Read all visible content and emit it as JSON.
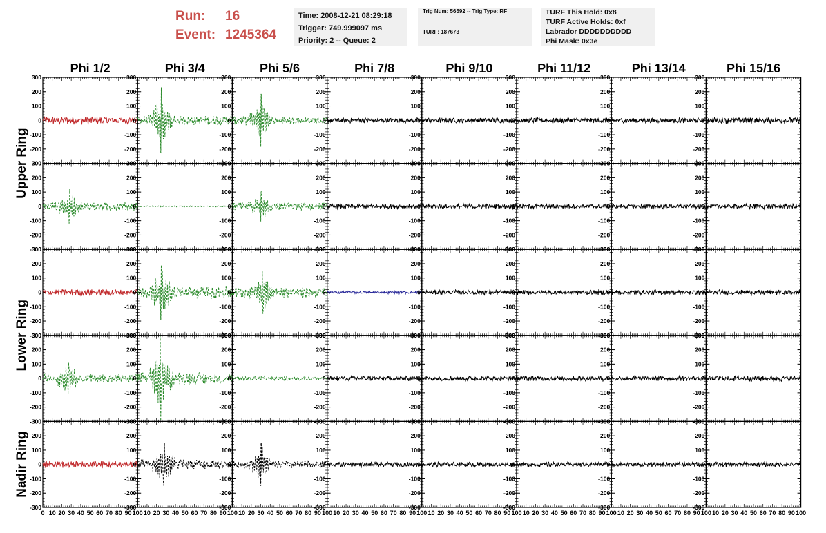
{
  "header": {
    "run_label": "Run:",
    "run_value": "16",
    "event_label": "Event:",
    "event_value": "1245364",
    "info_time": [
      "Time: 2008-12-21 08:29:18",
      "Trigger: 749.999097 ms",
      "Priority: 2 -- Queue: 2"
    ],
    "info_trig": [
      "Trig Num: 56592 -- Trig Type: RF",
      "",
      "TURF: 187673"
    ],
    "info_turf": [
      "TURF This Hold: 0x8",
      "TURF Active Holds: 0xf",
      "Labrador DDDDDDDDDD",
      "Phi Mask: 0x3e"
    ],
    "accent_color": "#c9504c"
  },
  "chart_data": {
    "type": "line",
    "columns": [
      "Phi 1/2",
      "Phi 3/4",
      "Phi 5/6",
      "Phi 7/8",
      "Phi 9/10",
      "Phi 11/12",
      "Phi 13/14",
      "Phi 15/16"
    ],
    "ring_labels": [
      "Upper Ring",
      "Lower Ring",
      "Nadir Ring"
    ],
    "ring_rows": [
      [
        0,
        1
      ],
      [
        2,
        3
      ],
      [
        4
      ]
    ],
    "rows": 5,
    "xlim": [
      0,
      100
    ],
    "ylim": [
      -300,
      300
    ],
    "x_tick_labels": [
      "0",
      "10",
      "20",
      "30",
      "40",
      "50",
      "60",
      "70",
      "80",
      "90",
      "100"
    ],
    "y_tick_labels": [
      "300",
      "200",
      "100",
      "0",
      "-100",
      "-200",
      "-300"
    ],
    "colors": {
      "red": "#c0282a",
      "green": "#2a8a2a",
      "blue": "#2a2a9a",
      "black": "#000000"
    },
    "panels": [
      [
        {
          "color": "red",
          "style": "solid",
          "amp": 22,
          "burst": 0,
          "spike": 0,
          "spike_at": 0
        },
        {
          "color": "green",
          "style": "dashed",
          "amp": 25,
          "burst": 150,
          "spike": 230,
          "spike_at": 25
        },
        {
          "color": "green",
          "style": "dashed",
          "amp": 22,
          "burst": 130,
          "spike": 185,
          "spike_at": 30
        },
        {
          "color": "black",
          "style": "solid",
          "amp": 14,
          "burst": 0,
          "spike": 0,
          "spike_at": 0
        },
        {
          "color": "black",
          "style": "solid",
          "amp": 14,
          "burst": 0,
          "spike": 0,
          "spike_at": 0
        },
        {
          "color": "black",
          "style": "solid",
          "amp": 14,
          "burst": 0,
          "spike": 0,
          "spike_at": 0
        },
        {
          "color": "black",
          "style": "solid",
          "amp": 14,
          "burst": 0,
          "spike": 0,
          "spike_at": 0
        },
        {
          "color": "black",
          "style": "solid",
          "amp": 17,
          "burst": 0,
          "spike": 0,
          "spike_at": 0
        }
      ],
      [
        {
          "color": "green",
          "style": "dashed",
          "amp": 25,
          "burst": 80,
          "spike": 120,
          "spike_at": 28
        },
        {
          "color": "green",
          "style": "dashed",
          "amp": 3,
          "burst": 0,
          "spike": 0,
          "spike_at": 0
        },
        {
          "color": "green",
          "style": "dashed",
          "amp": 22,
          "burst": 70,
          "spike": 105,
          "spike_at": 30
        },
        {
          "color": "black",
          "style": "solid",
          "amp": 14,
          "burst": 0,
          "spike": 0,
          "spike_at": 0
        },
        {
          "color": "black",
          "style": "solid",
          "amp": 15,
          "burst": 0,
          "spike": 0,
          "spike_at": 0
        },
        {
          "color": "black",
          "style": "solid",
          "amp": 14,
          "burst": 0,
          "spike": 0,
          "spike_at": 0
        },
        {
          "color": "black",
          "style": "solid",
          "amp": 14,
          "burst": 0,
          "spike": 0,
          "spike_at": 0
        },
        {
          "color": "black",
          "style": "solid",
          "amp": 15,
          "burst": 0,
          "spike": 0,
          "spike_at": 0
        }
      ],
      [
        {
          "color": "red",
          "style": "solid",
          "amp": 18,
          "burst": 0,
          "spike": 0,
          "spike_at": 0
        },
        {
          "color": "green",
          "style": "dashed",
          "amp": 35,
          "burst": 140,
          "spike": 190,
          "spike_at": 25
        },
        {
          "color": "green",
          "style": "dashed",
          "amp": 30,
          "burst": 120,
          "spike": 150,
          "spike_at": 32
        },
        {
          "color": "blue",
          "style": "solid",
          "amp": 8,
          "burst": 0,
          "spike": 0,
          "spike_at": 0
        },
        {
          "color": "black",
          "style": "solid",
          "amp": 14,
          "burst": 0,
          "spike": 0,
          "spike_at": 0
        },
        {
          "color": "black",
          "style": "solid",
          "amp": 14,
          "burst": 0,
          "spike": 0,
          "spike_at": 0
        },
        {
          "color": "black",
          "style": "solid",
          "amp": 14,
          "burst": 0,
          "spike": 0,
          "spike_at": 0
        },
        {
          "color": "black",
          "style": "solid",
          "amp": 14,
          "burst": 0,
          "spike": 0,
          "spike_at": 0
        }
      ],
      [
        {
          "color": "green",
          "style": "dashed",
          "amp": 25,
          "burst": 90,
          "spike": 110,
          "spike_at": 27
        },
        {
          "color": "green",
          "style": "dashed",
          "amp": 35,
          "burst": 180,
          "spike": 295,
          "spike_at": 24
        },
        {
          "color": "green",
          "style": "dashed",
          "amp": 12,
          "burst": 0,
          "spike": 0,
          "spike_at": 0
        },
        {
          "color": "black",
          "style": "solid",
          "amp": 14,
          "burst": 0,
          "spike": 0,
          "spike_at": 0
        },
        {
          "color": "black",
          "style": "solid",
          "amp": 14,
          "burst": 0,
          "spike": 0,
          "spike_at": 0
        },
        {
          "color": "black",
          "style": "solid",
          "amp": 14,
          "burst": 0,
          "spike": 0,
          "spike_at": 0
        },
        {
          "color": "black",
          "style": "solid",
          "amp": 14,
          "burst": 0,
          "spike": 0,
          "spike_at": 0
        },
        {
          "color": "black",
          "style": "solid",
          "amp": 16,
          "burst": 0,
          "spike": 0,
          "spike_at": 0
        }
      ],
      [
        {
          "color": "red",
          "style": "solid",
          "amp": 20,
          "burst": 0,
          "spike": 0,
          "spike_at": 0
        },
        {
          "color": "black",
          "style": "dashed",
          "amp": 28,
          "burst": 120,
          "spike": 150,
          "spike_at": 28
        },
        {
          "color": "black",
          "style": "dashed",
          "amp": 20,
          "burst": 110,
          "spike": 150,
          "spike_at": 30
        },
        {
          "color": "black",
          "style": "solid",
          "amp": 14,
          "burst": 0,
          "spike": 0,
          "spike_at": 0
        },
        {
          "color": "black",
          "style": "solid",
          "amp": 14,
          "burst": 0,
          "spike": 0,
          "spike_at": 0
        },
        {
          "color": "black",
          "style": "solid",
          "amp": 14,
          "burst": 0,
          "spike": 0,
          "spike_at": 0
        },
        {
          "color": "black",
          "style": "solid",
          "amp": 14,
          "burst": 0,
          "spike": 0,
          "spike_at": 0
        },
        {
          "color": "black",
          "style": "solid",
          "amp": 14,
          "burst": 0,
          "spike": 0,
          "spike_at": 0
        }
      ]
    ]
  }
}
